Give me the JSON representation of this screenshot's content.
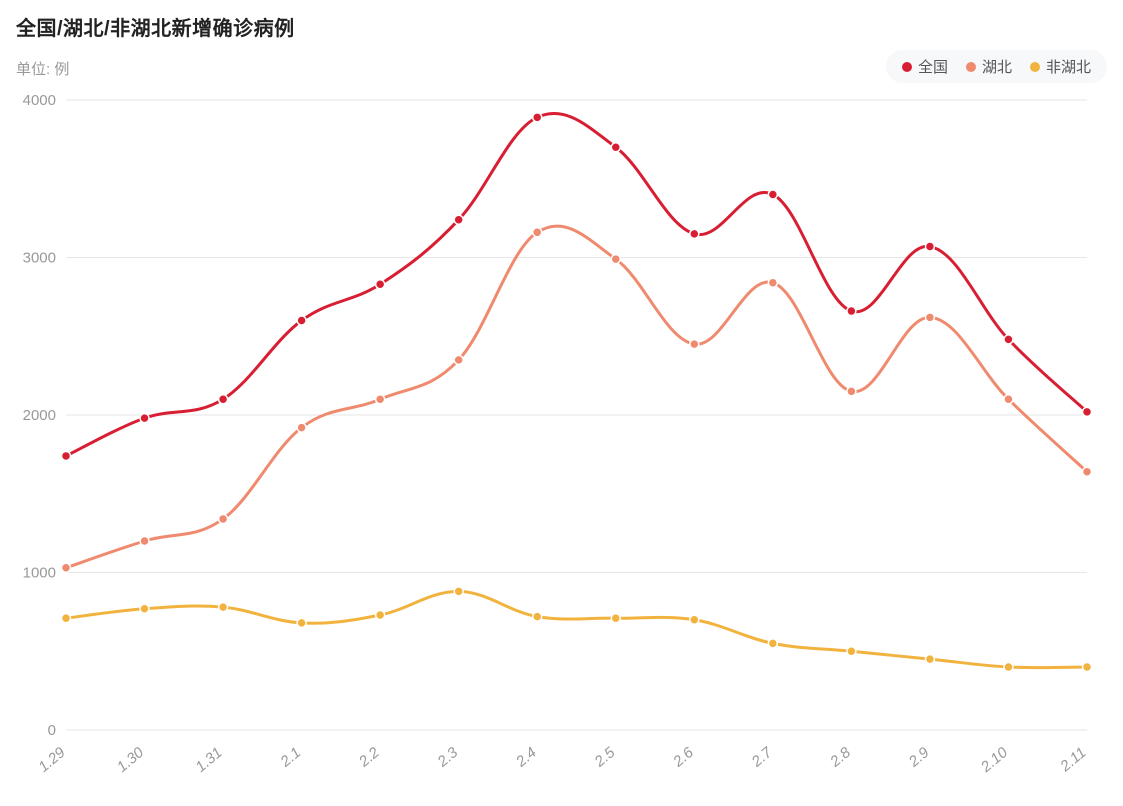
{
  "chart": {
    "type": "line",
    "title": "全国/湖北/非湖北新增确诊病例",
    "subtitle": "单位: 例",
    "title_fontsize": 20,
    "subtitle_fontsize": 15,
    "title_color": "#222222",
    "subtitle_color": "#999999",
    "background_color": "#ffffff",
    "legend": {
      "position": "top-right",
      "background": "#f7f8fa",
      "border_radius": 20,
      "fontsize": 15,
      "items": [
        {
          "label": "全国",
          "color": "#d81e32"
        },
        {
          "label": "湖北",
          "color": "#ef8a6f"
        },
        {
          "label": "非湖北",
          "color": "#f2b33e"
        }
      ]
    },
    "x": {
      "categories": [
        "1.29",
        "1.30",
        "1.31",
        "2.1",
        "2.2",
        "2.3",
        "2.4",
        "2.5",
        "2.6",
        "2.7",
        "2.8",
        "2.9",
        "2.10",
        "2.11"
      ],
      "tick_fontsize": 15,
      "tick_color": "#999999",
      "tick_rotation_deg": -40
    },
    "y": {
      "min": 0,
      "max": 4000,
      "tick_step": 1000,
      "ticks": [
        0,
        1000,
        2000,
        3000,
        4000
      ],
      "tick_fontsize": 15,
      "tick_color": "#999999",
      "gridline_color": "#e6e6e6"
    },
    "line_width": 3,
    "marker_radius": 4.5,
    "marker_border_color": "#ffffff",
    "smooth": true,
    "series": [
      {
        "name": "全国",
        "color": "#d81e32",
        "values": [
          1740,
          1980,
          2100,
          2600,
          2830,
          3240,
          3890,
          3700,
          3150,
          3400,
          2660,
          3070,
          2480,
          2020
        ]
      },
      {
        "name": "湖北",
        "color": "#ef8a6f",
        "values": [
          1030,
          1200,
          1340,
          1920,
          2100,
          2350,
          3160,
          2990,
          2450,
          2840,
          2150,
          2620,
          2100,
          1640
        ]
      },
      {
        "name": "非湖北",
        "color": "#f2b33e",
        "values": [
          710,
          770,
          780,
          680,
          730,
          880,
          720,
          710,
          700,
          550,
          500,
          450,
          400,
          400
        ]
      }
    ]
  }
}
